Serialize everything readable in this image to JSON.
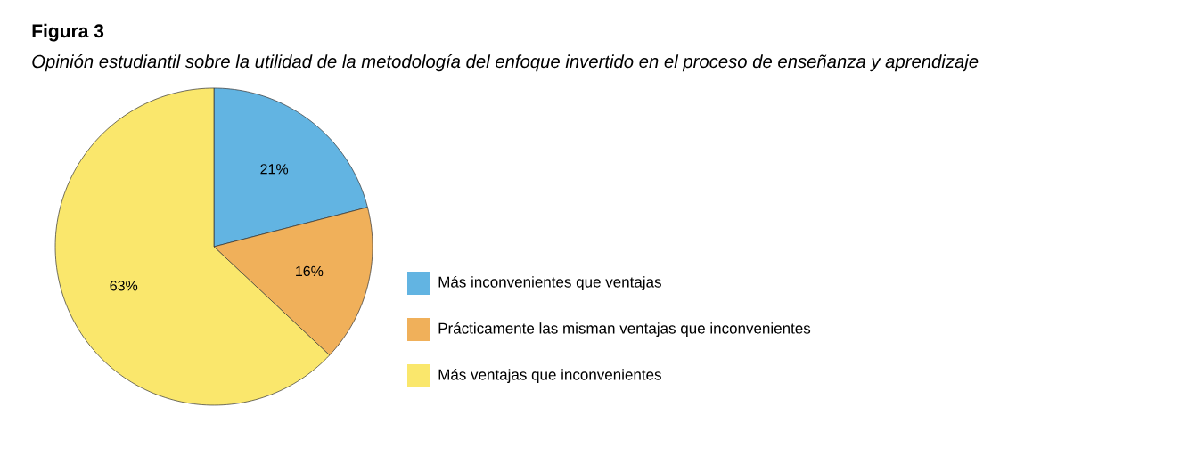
{
  "chart_data": {
    "type": "pie",
    "title": "Figura 3",
    "subtitle": "Opinión estudiantil sobre la utilidad de la metodología del enfoque invertido en el proceso de enseñanza y aprendizaje",
    "categories": [
      "Más inconvenientes que ventajas",
      "Prácticamente las misman ventajas que inconvenientes",
      "Más ventajas que inconvenientes"
    ],
    "values": [
      21,
      16,
      63
    ],
    "value_labels": [
      "21%",
      "16%",
      "63%"
    ],
    "colors": [
      "#62b4e2",
      "#f0b05a",
      "#fae76c"
    ],
    "legend": "right"
  }
}
